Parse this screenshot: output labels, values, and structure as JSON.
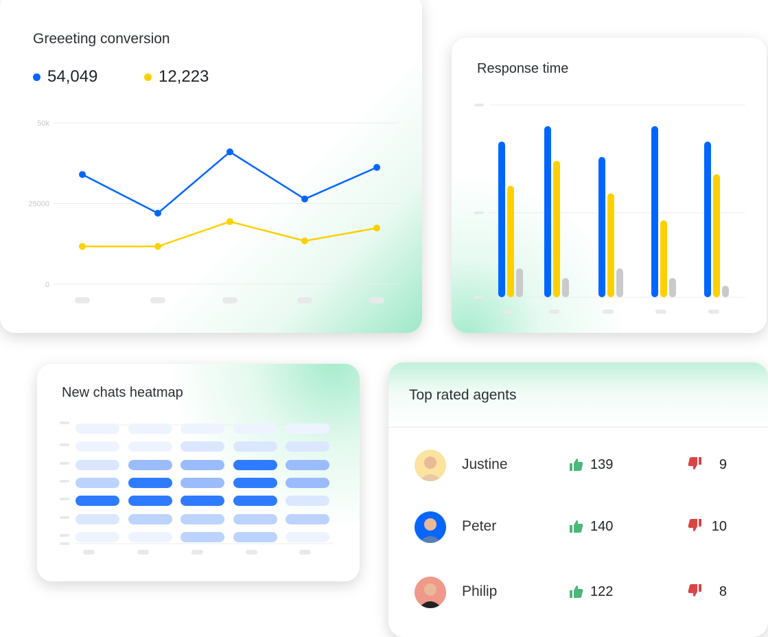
{
  "greeting_card": {
    "title": "Greeeting conversion",
    "legend": [
      {
        "value": "54,049",
        "color": "#0066ff"
      },
      {
        "value": "12,223",
        "color": "#ffd000"
      }
    ]
  },
  "response_card": {
    "title": "Response time"
  },
  "heatmap_card": {
    "title": "New chats heatmap"
  },
  "agents_card": {
    "title": "Top rated agents",
    "agents": [
      {
        "name": "Justine",
        "likes": "139",
        "dislikes": "9",
        "avatar_bg": "#fde3a0"
      },
      {
        "name": "Peter",
        "likes": "140",
        "dislikes": "10",
        "avatar_bg": "#0866ff"
      },
      {
        "name": "Philip",
        "likes": "122",
        "dislikes": "8",
        "avatar_bg": "#f0988a"
      }
    ],
    "like_icon": "thumbs-up-icon",
    "dislike_icon": "thumbs-down-icon",
    "like_color": "#4cb77a",
    "dislike_color": "#d94545"
  },
  "chart_data": [
    {
      "type": "line",
      "yticks": [
        "50k",
        "25000",
        "0"
      ],
      "ylim": [
        0,
        50000
      ],
      "grid": true,
      "series": [
        {
          "color": "#0066ff",
          "values": [
            34000,
            22000,
            41000,
            26400,
            36200
          ]
        },
        {
          "color": "#ffd000",
          "values": [
            11700,
            11700,
            19400,
            13400,
            17400
          ]
        }
      ]
    },
    {
      "type": "bar",
      "ylim": [
        0,
        100
      ],
      "grid": true,
      "series": [
        {
          "color": "#0066ff",
          "values": [
            81,
            89,
            73,
            89,
            81
          ]
        },
        {
          "color": "#ffd000",
          "values": [
            58,
            71,
            54,
            40,
            64
          ]
        },
        {
          "color": "#c9cacc",
          "values": [
            15,
            10,
            15,
            10,
            6
          ]
        }
      ]
    },
    {
      "type": "heatmap",
      "levels": [
        [
          0,
          0,
          0,
          0,
          0
        ],
        [
          0,
          0,
          1,
          1,
          1
        ],
        [
          1,
          3,
          3,
          4,
          3
        ],
        [
          2,
          4,
          3,
          4,
          3
        ],
        [
          4,
          4,
          4,
          4,
          1
        ],
        [
          1,
          2,
          2,
          2,
          2
        ],
        [
          0,
          0,
          2,
          2,
          0
        ]
      ],
      "palette": [
        "#eef4ff",
        "#dbe7ff",
        "#bcd3fd",
        "#9bbcfc",
        "#2f7bff"
      ]
    }
  ]
}
